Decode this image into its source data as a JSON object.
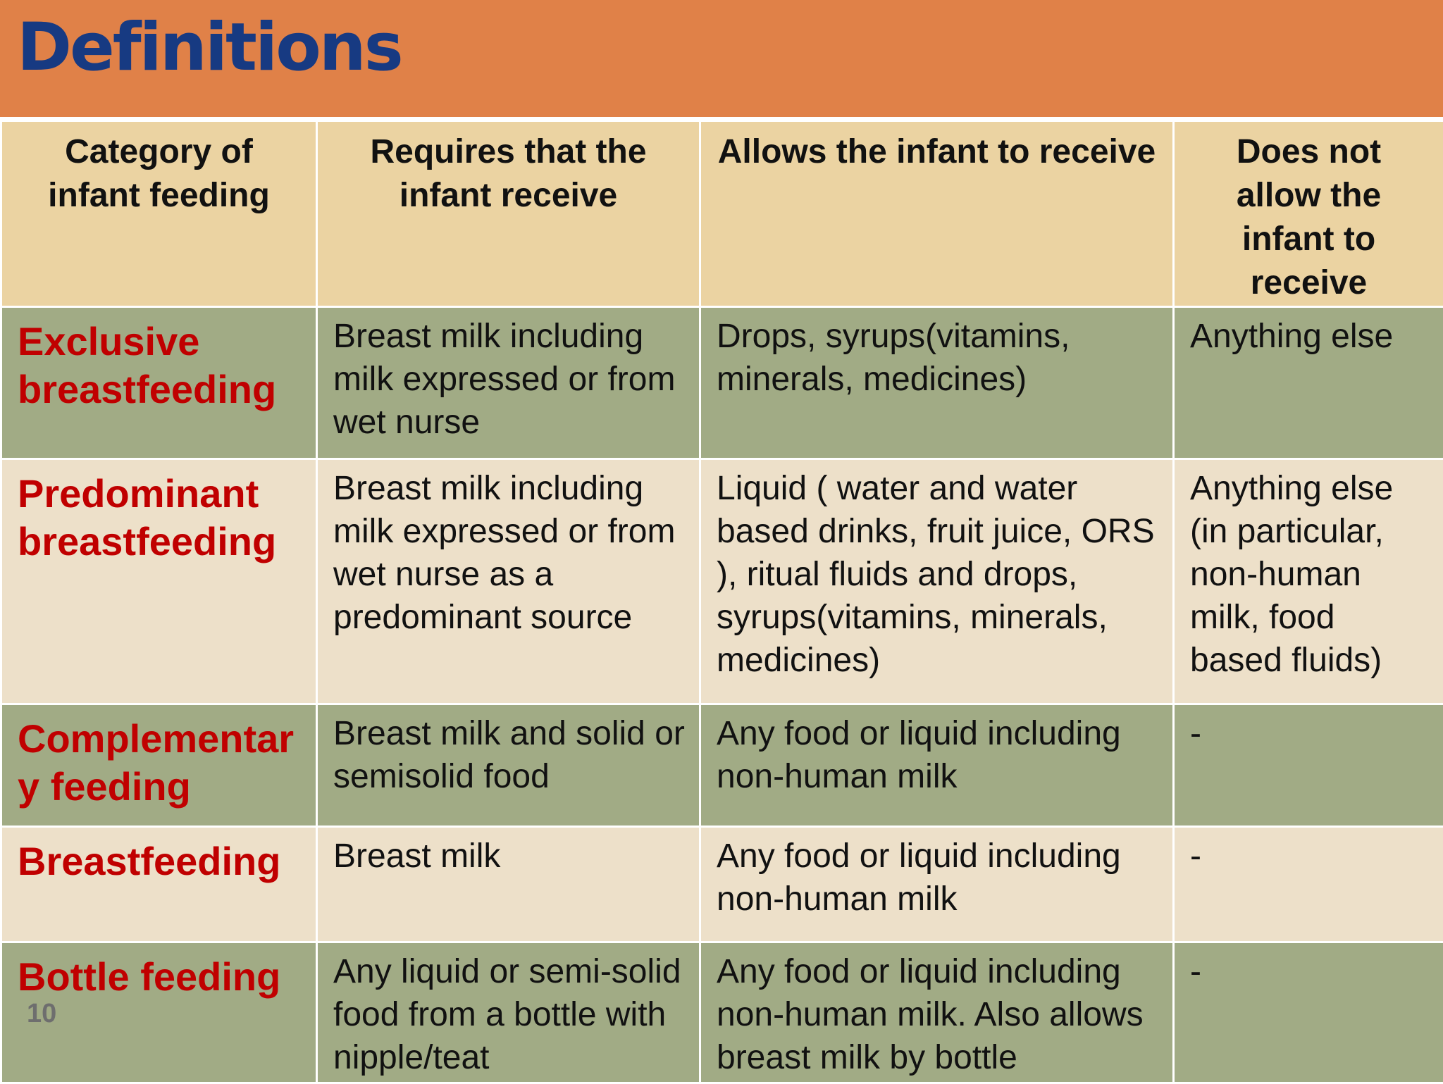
{
  "slide": {
    "title": "Definitions",
    "page_number": "10"
  },
  "table": {
    "headers": [
      "Category of infant feeding",
      "Requires that the infant receive",
      "Allows the infant to receive",
      "Does not allow the infant to receive"
    ],
    "rows": [
      {
        "category": "Exclusive breastfeeding",
        "requires": "Breast milk including milk expressed or from wet nurse",
        "allows": "Drops, syrups(vitamins, minerals, medicines)",
        "not_allowed": "Anything else"
      },
      {
        "category": "Predominant breastfeeding",
        "requires": "Breast milk including milk expressed or from wet nurse as a predominant source",
        "allows": "Liquid ( water and water based drinks, fruit juice, ORS ), ritual fluids and drops, syrups(vitamins, minerals, medicines)",
        "not_allowed": "Anything else (in particular, non-human milk, food based fluids)"
      },
      {
        "category": "Complementary feeding",
        "requires": "Breast milk and solid or semisolid food",
        "allows": "Any food or liquid including non-human milk",
        "not_allowed": "-"
      },
      {
        "category": "Breastfeeding",
        "requires": "Breast milk",
        "allows": "Any food or liquid including non-human milk",
        "not_allowed": "-"
      },
      {
        "category": "Bottle feeding",
        "requires": "Any liquid or semi-solid food from a bottle with nipple/teat",
        "allows": "Any food or liquid including non-human milk. Also allows breast milk by bottle",
        "not_allowed": "-"
      }
    ]
  },
  "colors": {
    "title_bar": "#e08148",
    "title_text": "#173a82",
    "header_bg": "#ebd3a2",
    "row_green": "#a1ab85",
    "row_cream": "#ede0c9",
    "category_text": "#c00000"
  }
}
